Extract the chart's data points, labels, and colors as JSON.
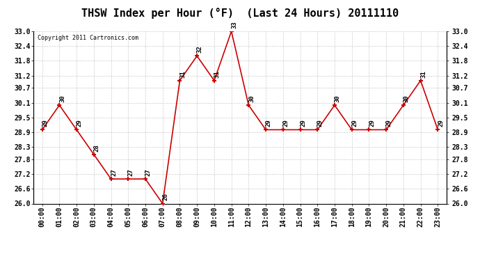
{
  "title": "THSW Index per Hour (°F)  (Last 24 Hours) 20111110",
  "copyright": "Copyright 2011 Cartronics.com",
  "hours": [
    "00:00",
    "01:00",
    "02:00",
    "03:00",
    "04:00",
    "05:00",
    "06:00",
    "07:00",
    "08:00",
    "09:00",
    "10:00",
    "11:00",
    "12:00",
    "13:00",
    "14:00",
    "15:00",
    "16:00",
    "17:00",
    "18:00",
    "19:00",
    "20:00",
    "21:00",
    "22:00",
    "23:00"
  ],
  "values": [
    29,
    30,
    29,
    28,
    27,
    27,
    27,
    26,
    31,
    32,
    31,
    33,
    30,
    29,
    29,
    29,
    29,
    30,
    29,
    29,
    29,
    30,
    31,
    29
  ],
  "line_color": "#cc0000",
  "marker_color": "#cc0000",
  "bg_color": "#ffffff",
  "grid_color": "#cccccc",
  "ylim_min": 26.0,
  "ylim_max": 33.0,
  "yticks": [
    26.0,
    26.6,
    27.2,
    27.8,
    28.3,
    28.9,
    29.5,
    30.1,
    30.7,
    31.2,
    31.8,
    32.4,
    33.0
  ],
  "title_fontsize": 11,
  "label_fontsize": 7,
  "annotation_fontsize": 6.5,
  "copyright_fontsize": 6
}
